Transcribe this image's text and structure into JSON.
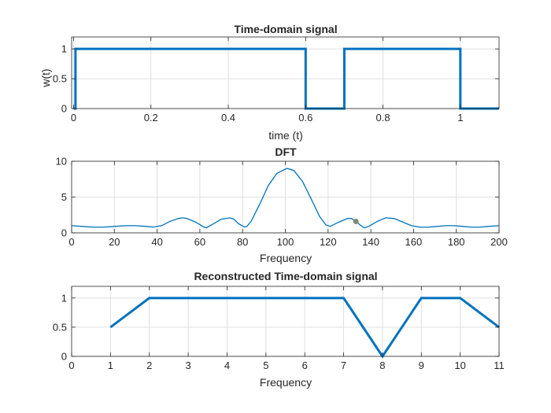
{
  "colors": {
    "line": "#0072BD",
    "grid": "#dfdfdf",
    "axis": "#262626",
    "marker": "#808a72",
    "background": "#ffffff"
  },
  "chart_data": [
    {
      "type": "line",
      "title": "Time-domain signal",
      "xlabel": "time (t)",
      "ylabel": "w(t)",
      "xlim": [
        -0.005,
        1.1
      ],
      "ylim": [
        0,
        1.2
      ],
      "xticks": [
        0,
        0.2,
        0.4,
        0.6,
        0.8,
        1
      ],
      "xtick_labels": [
        "0",
        "0.2",
        "0.4",
        "0.6",
        "0.8",
        "1"
      ],
      "yticks": [
        0,
        0.5,
        1
      ],
      "ytick_labels": [
        "0",
        "0.5",
        "1"
      ],
      "grid": true,
      "series": [
        {
          "x": [
            0,
            0.005,
            0.005,
            0.6,
            0.6,
            0.7,
            0.7,
            1.0,
            1.0,
            1.1
          ],
          "y": [
            0,
            0,
            1,
            1,
            0,
            0,
            1,
            1,
            0,
            0
          ]
        }
      ]
    },
    {
      "type": "line",
      "title": "DFT",
      "xlabel": "Frequency",
      "ylabel": "",
      "xlim": [
        0,
        200
      ],
      "ylim": [
        0,
        10
      ],
      "xticks": [
        0,
        20,
        40,
        60,
        80,
        100,
        120,
        140,
        160,
        180,
        200
      ],
      "xtick_labels": [
        "0",
        "20",
        "40",
        "60",
        "80",
        "100",
        "120",
        "140",
        "160",
        "180",
        "200"
      ],
      "yticks": [
        0,
        5,
        10
      ],
      "ytick_labels": [
        "0",
        "5",
        "10"
      ],
      "grid": true,
      "series": [
        {
          "x": [
            0,
            5,
            10,
            15,
            20,
            25,
            30,
            35,
            38,
            42,
            46,
            50,
            52,
            54,
            58,
            62,
            63,
            66,
            70,
            74,
            76,
            78,
            81,
            82,
            84,
            88,
            92,
            96,
            100,
            101,
            104,
            108,
            112,
            116,
            119,
            121,
            125,
            129,
            131,
            133,
            135,
            137,
            139,
            143,
            147,
            151,
            155,
            159,
            163,
            167,
            171,
            175,
            179,
            183,
            187,
            191,
            195,
            200
          ],
          "y": [
            1.0,
            0.9,
            0.8,
            0.8,
            0.9,
            1.0,
            1.0,
            0.9,
            0.8,
            1.0,
            1.6,
            2.0,
            2.1,
            2.0,
            1.5,
            0.8,
            0.7,
            1.2,
            1.9,
            2.1,
            1.9,
            1.3,
            0.8,
            0.9,
            1.6,
            4.0,
            6.6,
            8.3,
            8.9,
            9.0,
            8.7,
            7.2,
            4.8,
            2.3,
            1.1,
            0.9,
            1.5,
            2.0,
            2.0,
            1.6,
            1.1,
            0.7,
            0.9,
            1.6,
            2.1,
            2.0,
            1.5,
            1.0,
            0.8,
            0.8,
            0.9,
            1.0,
            1.0,
            0.9,
            0.8,
            0.8,
            0.9,
            1.0
          ]
        }
      ],
      "marker": {
        "x": 133,
        "y": 1.6
      }
    },
    {
      "type": "line",
      "title": "Reconstructed Time-domain signal",
      "xlabel": "Frequency",
      "ylabel": "",
      "xlim": [
        0,
        11
      ],
      "ylim": [
        0,
        1.2
      ],
      "xticks": [
        0,
        1,
        2,
        3,
        4,
        5,
        6,
        7,
        8,
        9,
        10,
        11
      ],
      "xtick_labels": [
        "0",
        "1",
        "2",
        "3",
        "4",
        "5",
        "6",
        "7",
        "8",
        "9",
        "10",
        "11"
      ],
      "yticks": [
        0,
        0.5,
        1
      ],
      "ytick_labels": [
        "0",
        "0.5",
        "1"
      ],
      "grid": true,
      "series": [
        {
          "x": [
            1,
            2,
            3,
            4,
            5,
            6,
            7,
            8,
            9,
            10,
            11
          ],
          "y": [
            0.5,
            1,
            1,
            1,
            1,
            1,
            1,
            0,
            1,
            1,
            0.5
          ]
        }
      ]
    }
  ]
}
